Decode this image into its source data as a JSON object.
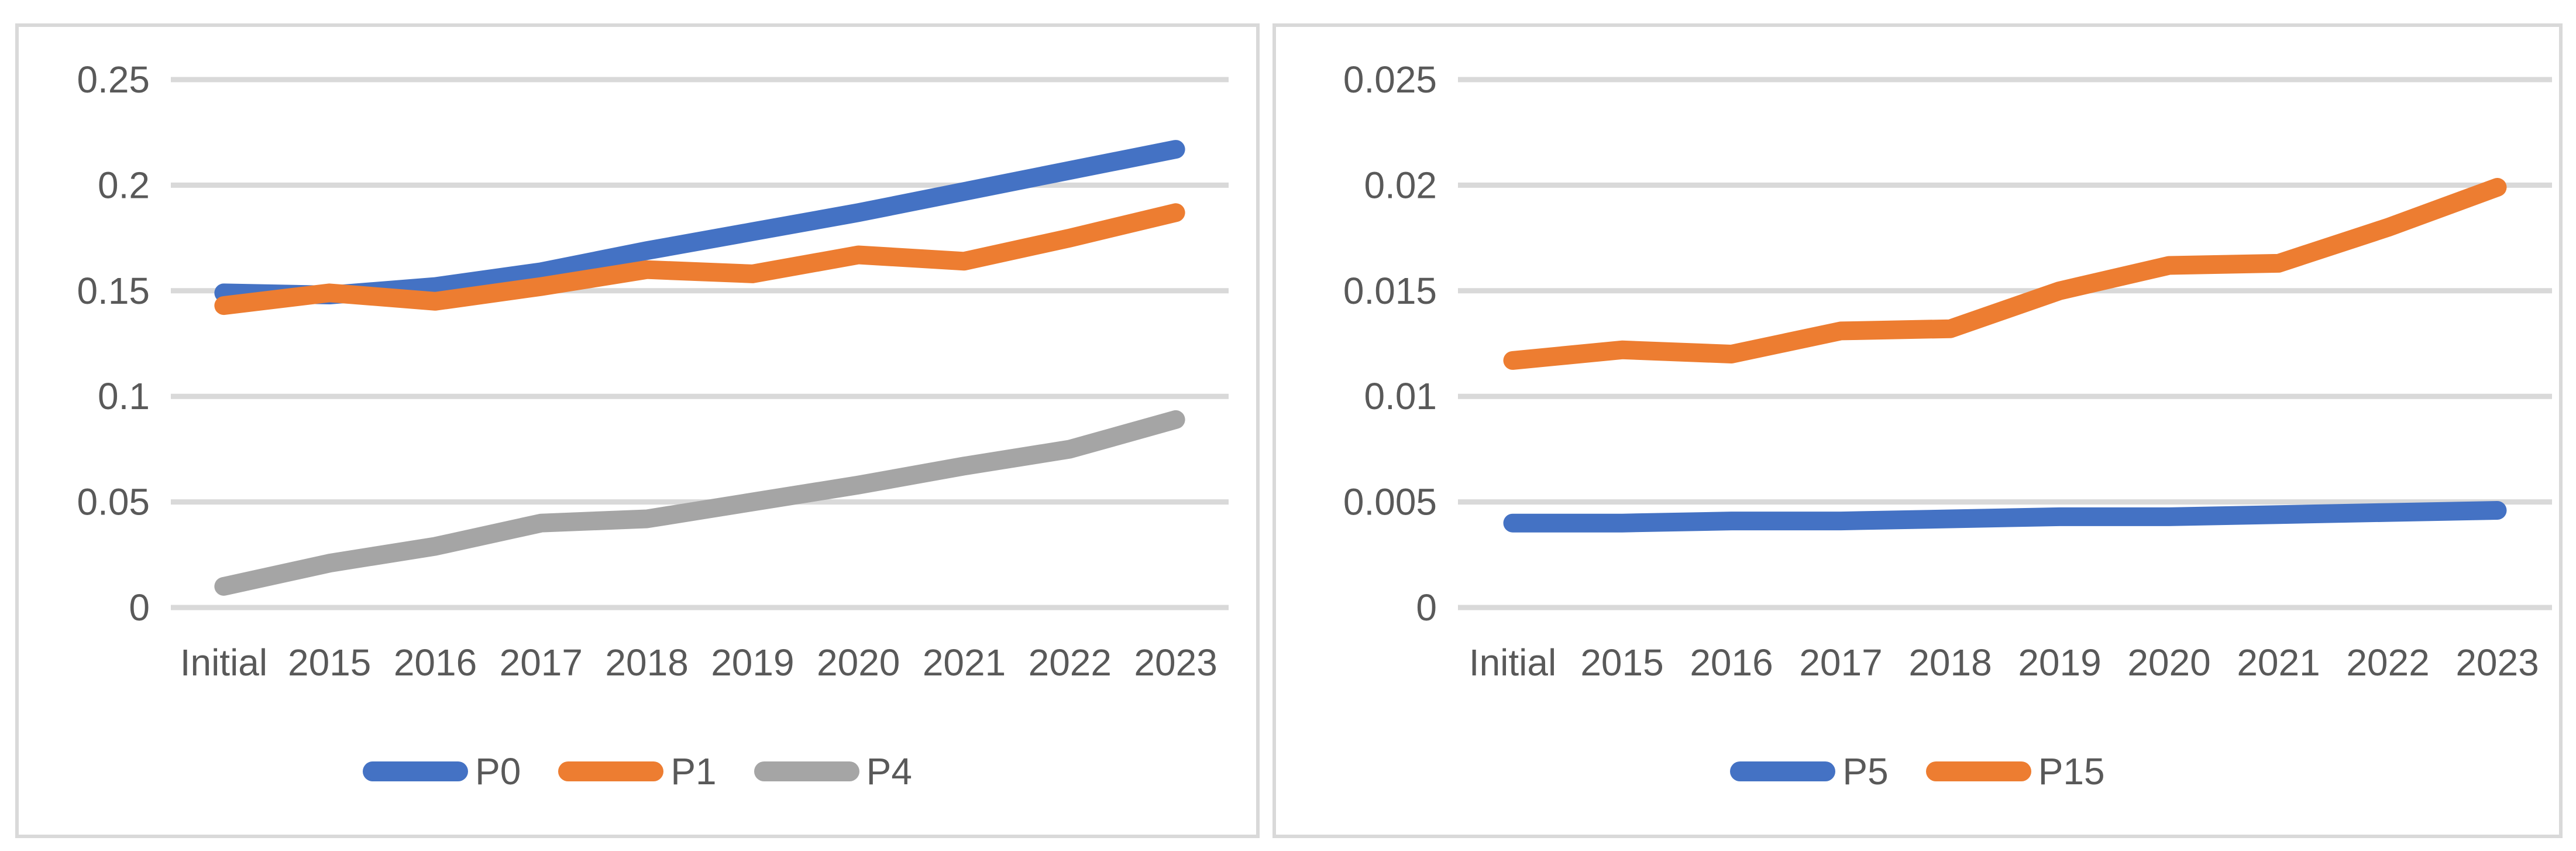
{
  "style": {
    "background": "#FFFFFF",
    "panel_border": "#D9D9D9",
    "gridline": "#D9D9D9",
    "axis_text": "#595959",
    "series_blue": "#4472C4",
    "series_orange": "#ED7D31",
    "series_gray": "#A5A5A5"
  },
  "chart_data": [
    {
      "type": "line",
      "title": "",
      "categories": [
        "Initial",
        "2015",
        "2016",
        "2017",
        "2018",
        "2019",
        "2020",
        "2021",
        "2022",
        "2023"
      ],
      "series": [
        {
          "name": "P0",
          "color": "#4472C4",
          "values": [
            0.149,
            0.148,
            0.152,
            0.159,
            0.169,
            0.178,
            0.187,
            0.197,
            0.207,
            0.217
          ]
        },
        {
          "name": "P1",
          "color": "#ED7D31",
          "values": [
            0.143,
            0.149,
            0.145,
            0.152,
            0.16,
            0.158,
            0.167,
            0.164,
            0.175,
            0.187
          ]
        },
        {
          "name": "P4",
          "color": "#A5A5A5",
          "values": [
            0.01,
            0.021,
            0.029,
            0.04,
            0.042,
            0.05,
            0.058,
            0.067,
            0.075,
            0.089
          ]
        }
      ],
      "y_axis": {
        "min": 0,
        "max": 0.25,
        "tick_labels": [
          "0.25",
          "0.2",
          "0.15",
          "0.1",
          "0.05",
          "0"
        ]
      },
      "x_axis": {
        "label": ""
      },
      "grid": true,
      "legend_position": "bottom"
    },
    {
      "type": "line",
      "title": "",
      "categories": [
        "Initial",
        "2015",
        "2016",
        "2017",
        "2018",
        "2019",
        "2020",
        "2021",
        "2022",
        "2023"
      ],
      "series": [
        {
          "name": "P5",
          "color": "#4472C4",
          "values": [
            0.004,
            0.004,
            0.0041,
            0.0041,
            0.0042,
            0.0043,
            0.0043,
            0.0044,
            0.0045,
            0.0046
          ]
        },
        {
          "name": "P15",
          "color": "#ED7D31",
          "values": [
            0.0117,
            0.0122,
            0.012,
            0.0131,
            0.0132,
            0.015,
            0.0162,
            0.0163,
            0.018,
            0.0199
          ]
        }
      ],
      "y_axis": {
        "min": 0,
        "max": 0.025,
        "tick_labels": [
          "0.025",
          "0.02",
          "0.015",
          "0.01",
          "0.005",
          "0"
        ]
      },
      "x_axis": {
        "label": ""
      },
      "grid": true,
      "legend_position": "bottom"
    }
  ]
}
